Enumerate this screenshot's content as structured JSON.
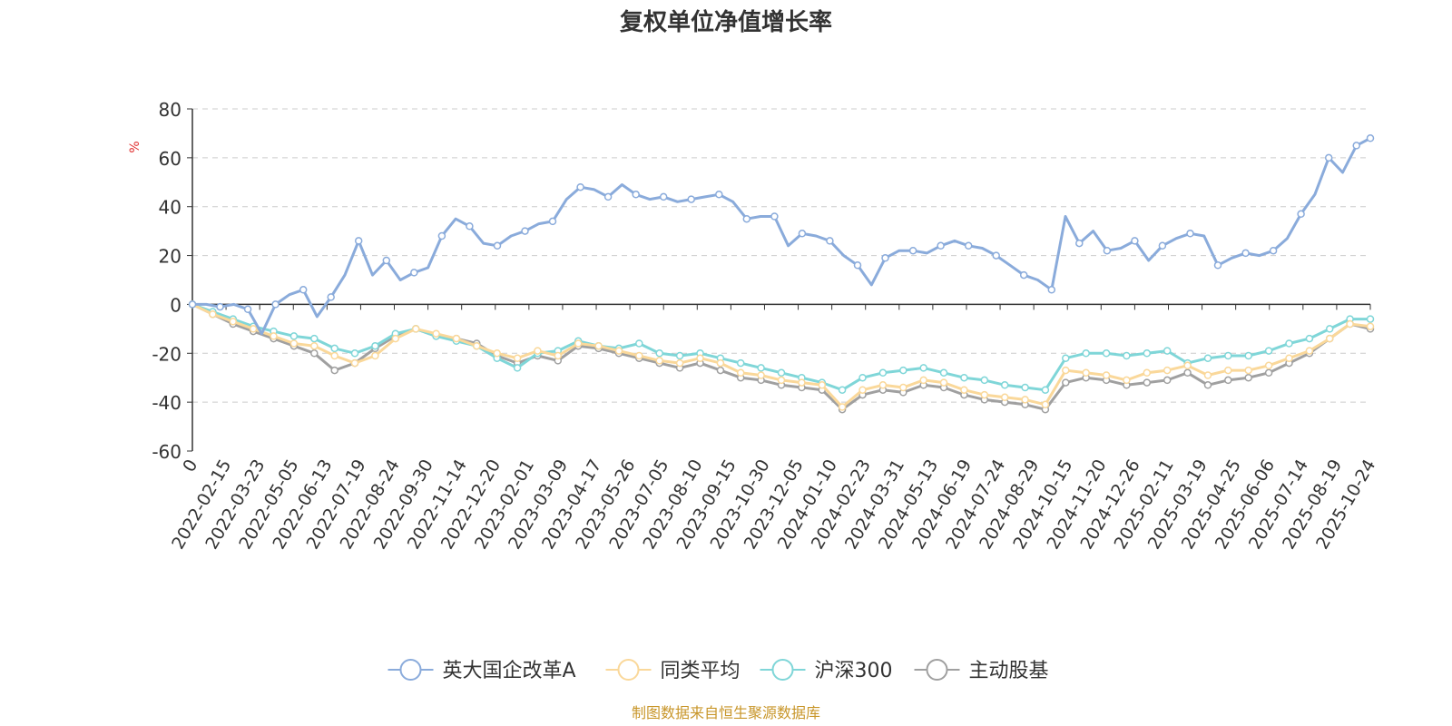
{
  "chart_data": {
    "type": "line",
    "title": "复权单位净值增长率",
    "y_unit": "%",
    "ylim": [
      -60,
      80
    ],
    "yticks": [
      80,
      60,
      40,
      20,
      0,
      -20,
      -40,
      -60
    ],
    "x_first_label": "0",
    "x_tick_labels": [
      "2022-02-15",
      "2022-03-23",
      "2022-05-05",
      "2022-06-13",
      "2022-07-19",
      "2022-08-24",
      "2022-09-30",
      "2022-11-14",
      "2022-12-20",
      "2023-02-01",
      "2023-03-09",
      "2023-04-17",
      "2023-05-26",
      "2023-07-05",
      "2023-08-10",
      "2023-09-15",
      "2023-10-30",
      "2023-12-05",
      "2024-01-10",
      "2024-02-23",
      "2024-03-31",
      "2024-05-13",
      "2024-06-19",
      "2024-07-24",
      "2024-08-29",
      "2024-10-15",
      "2024-11-20",
      "2024-12-26",
      "2025-02-11",
      "2025-03-19",
      "2025-04-25",
      "2025-06-06",
      "2025-07-14",
      "2025-08-19",
      "2025-10-24"
    ],
    "grid": true,
    "legend_position": "bottom",
    "series": [
      {
        "name": "英大国企改革A",
        "color": "#8aabdb",
        "values": [
          0,
          0,
          -1,
          0,
          -2,
          -12,
          0,
          4,
          6,
          -5,
          3,
          12,
          26,
          12,
          18,
          10,
          13,
          15,
          28,
          35,
          32,
          25,
          24,
          28,
          30,
          33,
          34,
          43,
          48,
          47,
          44,
          49,
          45,
          43,
          44,
          42,
          43,
          44,
          45,
          42,
          35,
          36,
          36,
          24,
          29,
          28,
          26,
          20,
          16,
          8,
          19,
          22,
          22,
          21,
          24,
          26,
          24,
          23,
          20,
          16,
          12,
          10,
          6,
          36,
          25,
          30,
          22,
          23,
          26,
          18,
          24,
          27,
          29,
          28,
          16,
          19,
          21,
          20,
          22,
          27,
          37,
          45,
          60,
          54,
          65,
          68
        ]
      },
      {
        "name": "同类平均",
        "color": "#fad89a",
        "values": [
          0,
          -4,
          -7,
          -10,
          -13,
          -16,
          -17,
          -21,
          -24,
          -21,
          -14,
          -10,
          -12,
          -14,
          -17,
          -20,
          -22,
          -19,
          -21,
          -16,
          -17,
          -19,
          -21,
          -23,
          -24,
          -22,
          -24,
          -28,
          -29,
          -31,
          -32,
          -33,
          -42,
          -35,
          -33,
          -34,
          -31,
          -32,
          -35,
          -37,
          -38,
          -39,
          -41,
          -27,
          -28,
          -29,
          -31,
          -28,
          -27,
          -25,
          -29,
          -27,
          -27,
          -25,
          -22,
          -19,
          -14,
          -8,
          -9
        ]
      },
      {
        "name": "沪深300",
        "color": "#7fd6d8",
        "values": [
          0,
          -3,
          -6,
          -9,
          -11,
          -13,
          -14,
          -18,
          -20,
          -17,
          -12,
          -10,
          -13,
          -15,
          -17,
          -22,
          -26,
          -20,
          -19,
          -15,
          -17,
          -18,
          -16,
          -20,
          -21,
          -20,
          -22,
          -24,
          -26,
          -28,
          -30,
          -32,
          -35,
          -30,
          -28,
          -27,
          -26,
          -28,
          -30,
          -31,
          -33,
          -34,
          -35,
          -22,
          -20,
          -20,
          -21,
          -20,
          -19,
          -24,
          -22,
          -21,
          -21,
          -19,
          -16,
          -14,
          -10,
          -6,
          -6
        ]
      },
      {
        "name": "主动股基",
        "color": "#a0a0a0",
        "values": [
          0,
          -4,
          -8,
          -11,
          -14,
          -17,
          -20,
          -27,
          -24,
          -18,
          -13,
          -10,
          -13,
          -14,
          -16,
          -21,
          -24,
          -21,
          -23,
          -17,
          -18,
          -20,
          -22,
          -24,
          -26,
          -24,
          -27,
          -30,
          -31,
          -33,
          -34,
          -35,
          -43,
          -37,
          -35,
          -36,
          -33,
          -34,
          -37,
          -39,
          -40,
          -41,
          -43,
          -32,
          -30,
          -31,
          -33,
          -32,
          -31,
          -28,
          -33,
          -31,
          -30,
          -28,
          -24,
          -20,
          -14,
          -8,
          -10
        ]
      }
    ],
    "source_note": "制图数据来自恒生聚源数据库"
  }
}
